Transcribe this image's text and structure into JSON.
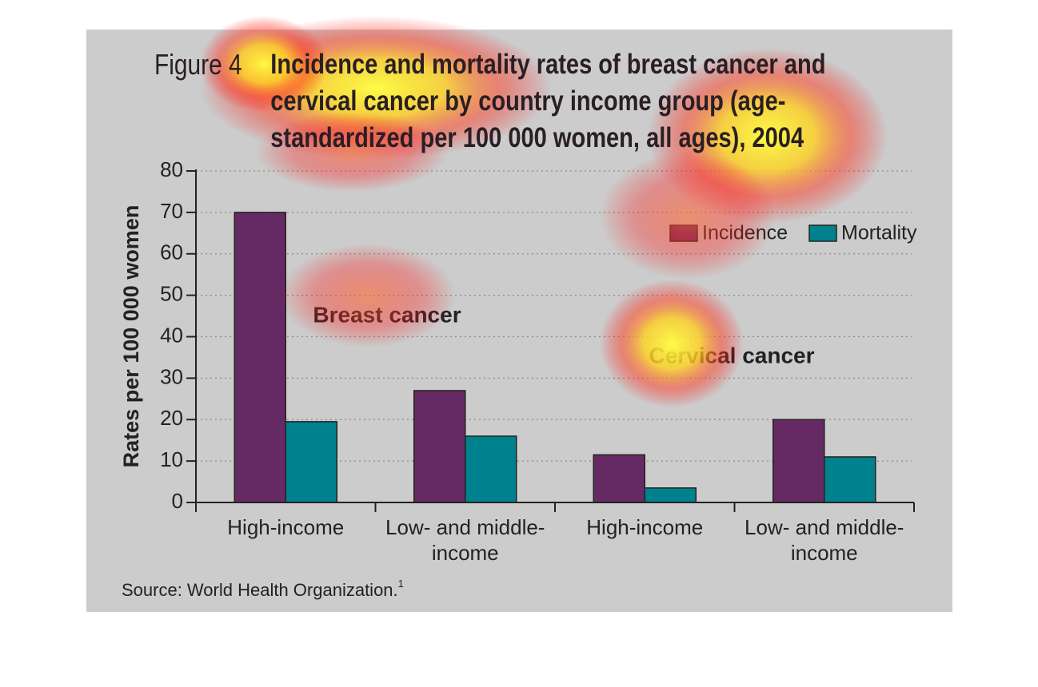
{
  "chart_data": {
    "type": "bar",
    "figure_label": "Figure 4",
    "title": "Incidence and mortality rates of breast cancer and cervical cancer by country income group (age-standardized per 100 000 women, all ages), 2004",
    "y_label": "Rates per 100 000 women",
    "categories": [
      "High-income",
      "Low- and middle-income",
      "High-income",
      "Low- and middle-income"
    ],
    "annotations": [
      "Breast cancer",
      "Cervical cancer"
    ],
    "series": [
      {
        "name": "Incidence",
        "color": "#652a63",
        "values": [
          70,
          27,
          11.5,
          20
        ]
      },
      {
        "name": "Mortality",
        "color": "#00818e",
        "values": [
          19.5,
          16,
          3.5,
          11
        ]
      }
    ],
    "ylim": [
      0,
      80
    ],
    "yticks": [
      0,
      10,
      20,
      30,
      40,
      50,
      60,
      70,
      80
    ],
    "grid": true,
    "legend": "upper right",
    "source": "Source: World Health Organization.",
    "source_note": "1"
  }
}
